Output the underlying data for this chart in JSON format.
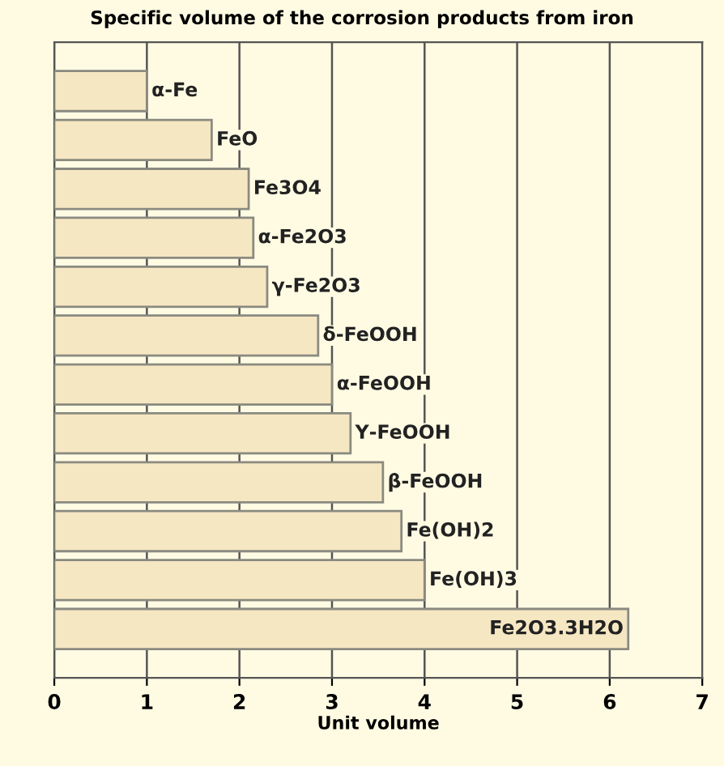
{
  "chart_data": {
    "type": "bar",
    "orientation": "horizontal",
    "title": "Specific volume of the corrosion products from iron",
    "xlabel": "Unit volume",
    "categories": [
      "α-Fe",
      "FeO",
      "Fe3O4",
      "α-Fe2O3",
      "γ-Fe2O3",
      "δ-FeOOH",
      "α-FeOOH",
      "Υ-FeOOH",
      "β-FeOOH",
      "Fe(OH)2",
      "Fe(OH)3",
      "Fe2O3.3H2O"
    ],
    "values": [
      1.0,
      1.7,
      2.1,
      2.15,
      2.3,
      2.85,
      3.0,
      3.2,
      3.55,
      3.75,
      4.0,
      6.2
    ],
    "color": "#f6e7c3",
    "xlim": [
      0,
      7
    ],
    "xticks": [
      0,
      1,
      2,
      3,
      4,
      5,
      6,
      7
    ],
    "grid": "x"
  }
}
